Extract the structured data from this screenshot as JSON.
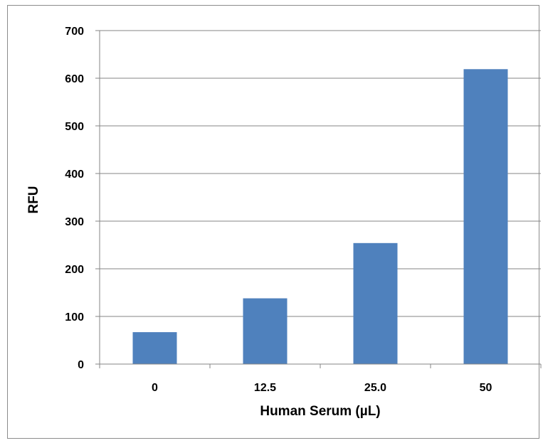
{
  "chart_data": {
    "type": "bar",
    "title": "",
    "xlabel": "Human Serum (µL)",
    "ylabel": "RFU",
    "categories": [
      "0",
      "12.5",
      "25.0",
      "50"
    ],
    "values": [
      67,
      138,
      254,
      619
    ],
    "ylim": [
      0,
      700
    ],
    "yticks": [
      "0",
      "100",
      "200",
      "300",
      "400",
      "500",
      "600",
      "700"
    ],
    "grid": true,
    "legend": "none",
    "bar_color": "#4f81bd",
    "grid_color": "#868686"
  }
}
